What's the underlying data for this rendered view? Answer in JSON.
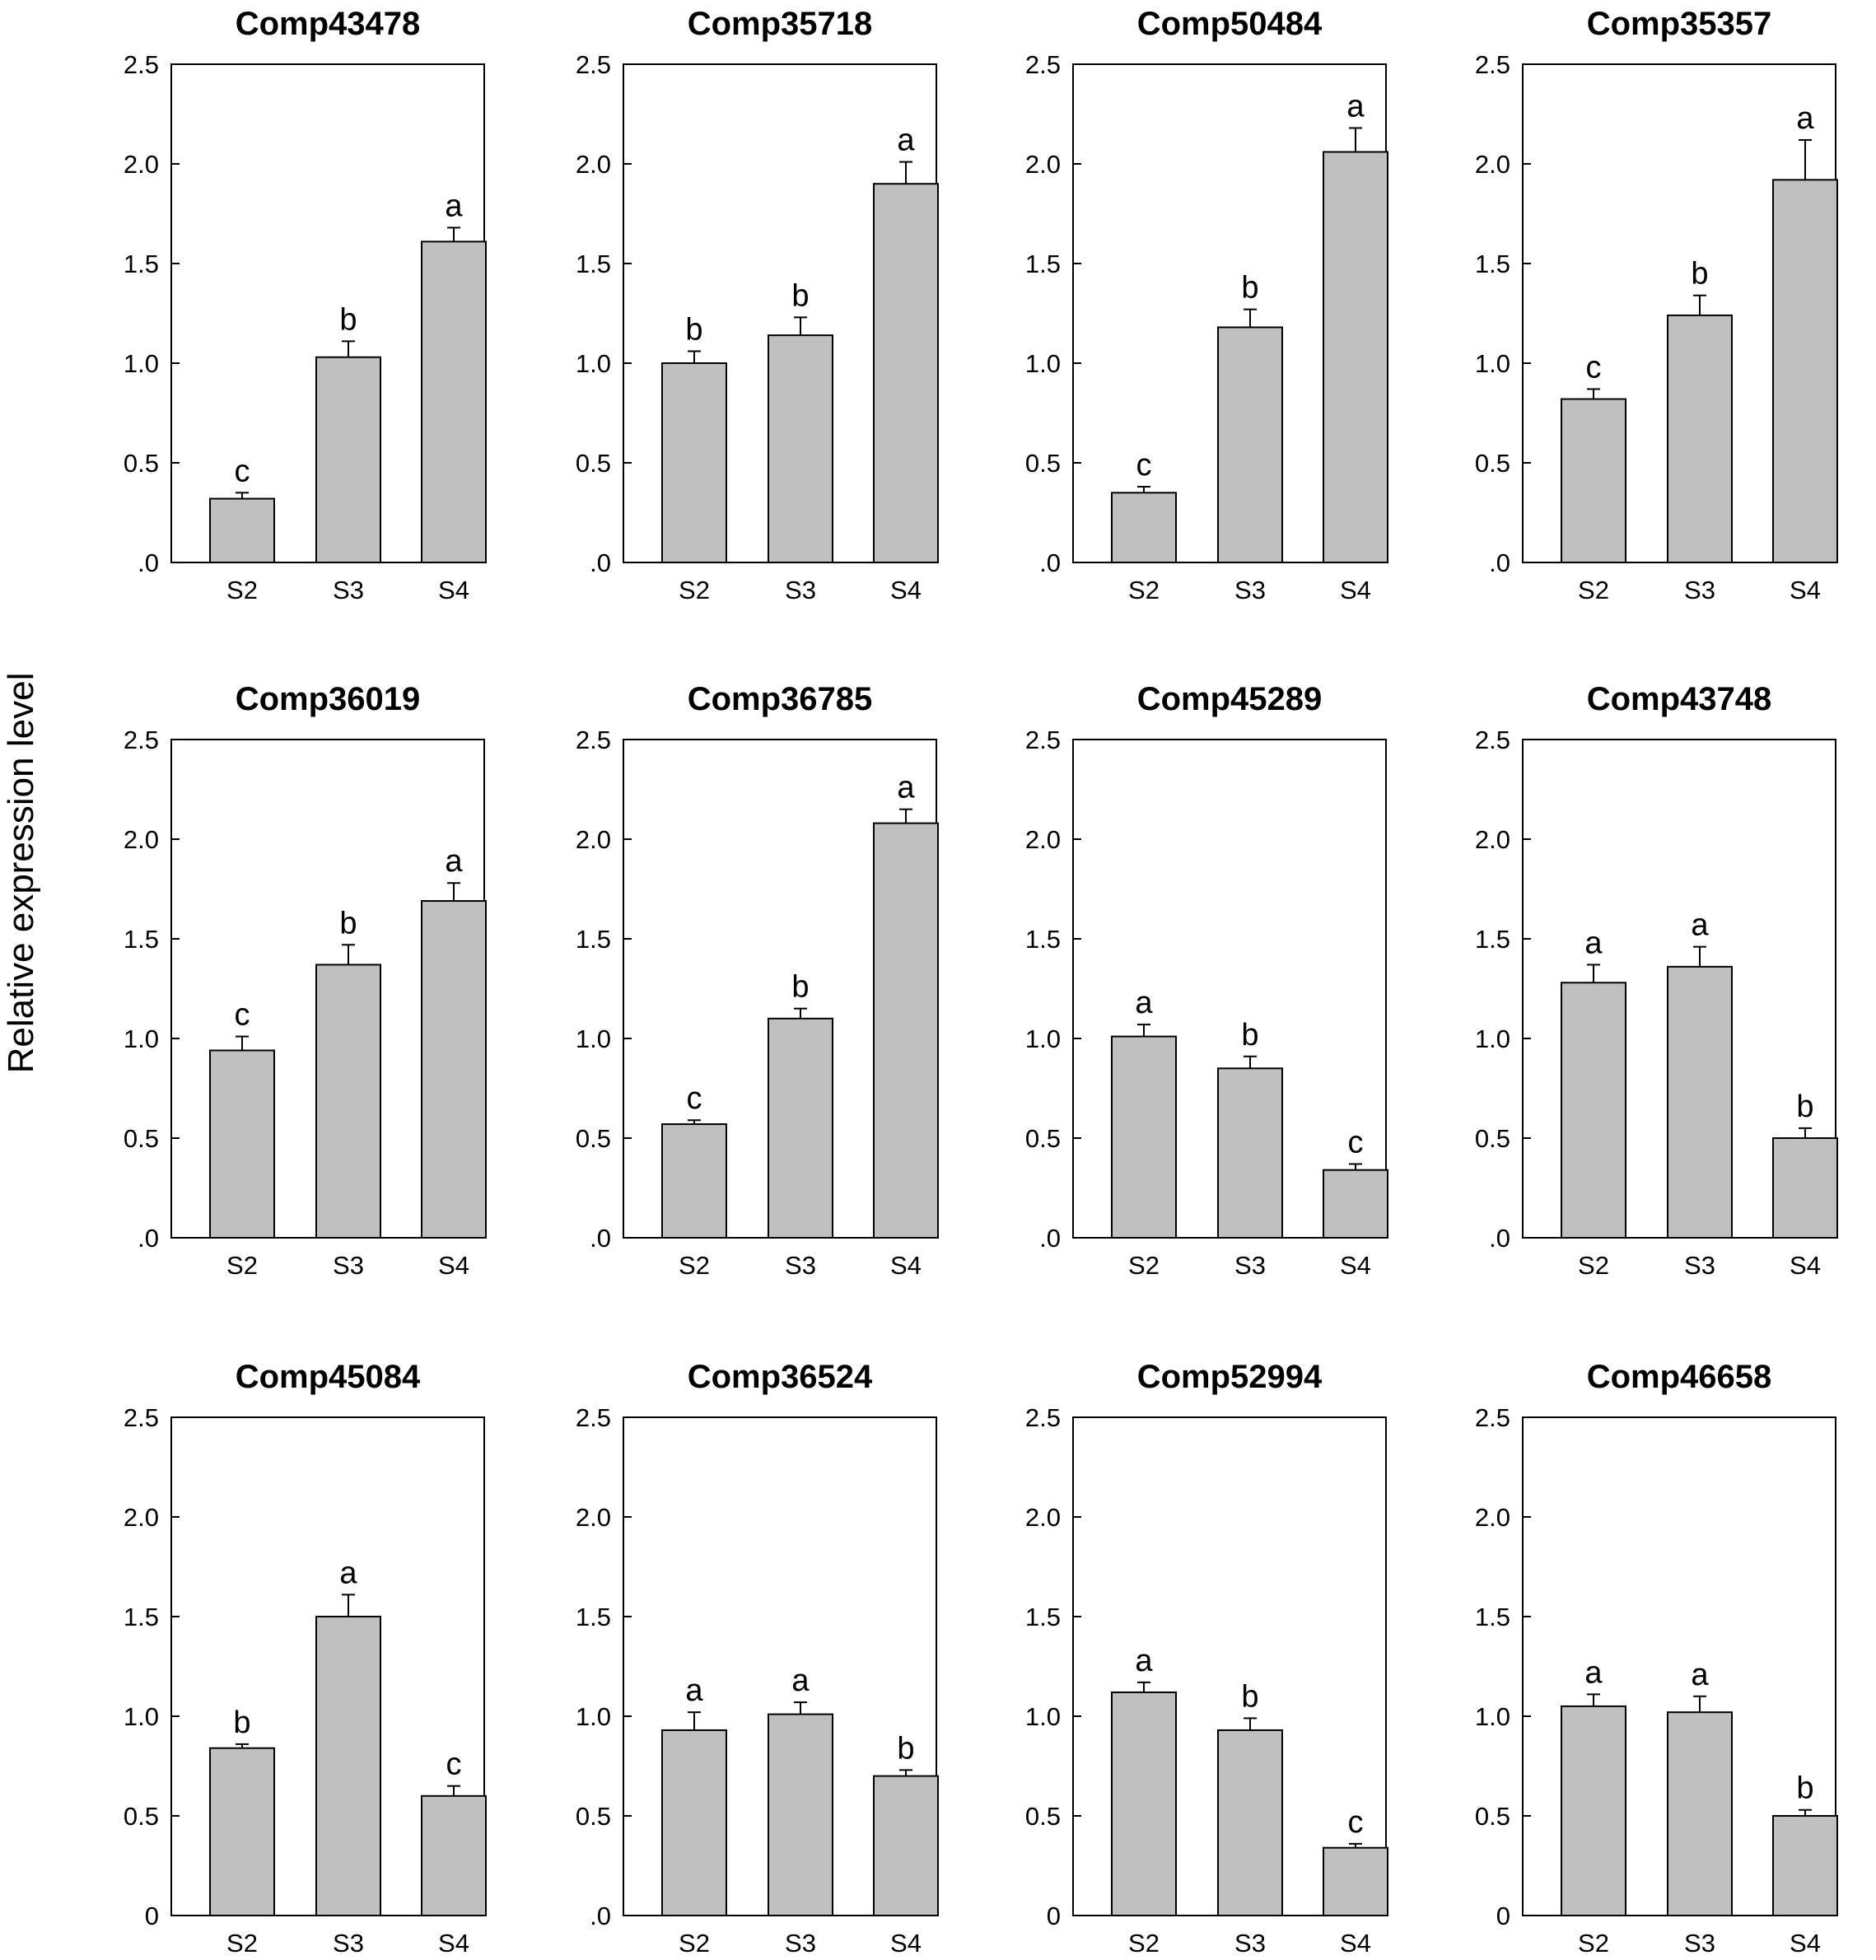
{
  "ylabel": "Relative expression level",
  "chart_data": [
    {
      "type": "bar",
      "title": "Comp43478",
      "categories": [
        "S2",
        "S3",
        "S4"
      ],
      "values": [
        0.32,
        1.03,
        1.61
      ],
      "errors": [
        0.03,
        0.08,
        0.07
      ],
      "labels": [
        "c",
        "b",
        "a"
      ],
      "ylim": [
        0,
        2.5
      ],
      "yticks": [
        ".0",
        "0.5",
        "1.0",
        "1.5",
        "2.0",
        "2.5"
      ]
    },
    {
      "type": "bar",
      "title": "Comp35718",
      "categories": [
        "S2",
        "S3",
        "S4"
      ],
      "values": [
        1.0,
        1.14,
        1.9
      ],
      "errors": [
        0.06,
        0.09,
        0.11
      ],
      "labels": [
        "b",
        "b",
        "a"
      ],
      "ylim": [
        0,
        2.5
      ],
      "yticks": [
        ".0",
        "0.5",
        "1.0",
        "1.5",
        "2.0",
        "2.5"
      ]
    },
    {
      "type": "bar",
      "title": "Comp50484",
      "categories": [
        "S2",
        "S3",
        "S4"
      ],
      "values": [
        0.35,
        1.18,
        2.06
      ],
      "errors": [
        0.03,
        0.09,
        0.12
      ],
      "labels": [
        "c",
        "b",
        "a"
      ],
      "ylim": [
        0,
        2.5
      ],
      "yticks": [
        ".0",
        "0.5",
        "1.0",
        "1.5",
        "2.0",
        "2.5"
      ]
    },
    {
      "type": "bar",
      "title": "Comp35357",
      "categories": [
        "S2",
        "S3",
        "S4"
      ],
      "values": [
        0.82,
        1.24,
        1.92
      ],
      "errors": [
        0.05,
        0.1,
        0.2
      ],
      "labels": [
        "c",
        "b",
        "a"
      ],
      "ylim": [
        0,
        2.5
      ],
      "yticks": [
        ".0",
        "0.5",
        "1.0",
        "1.5",
        "2.0",
        "2.5"
      ]
    },
    {
      "type": "bar",
      "title": "Comp36019",
      "categories": [
        "S2",
        "S3",
        "S4"
      ],
      "values": [
        0.94,
        1.37,
        1.69
      ],
      "errors": [
        0.07,
        0.1,
        0.09
      ],
      "labels": [
        "c",
        "b",
        "a"
      ],
      "ylim": [
        0,
        2.5
      ],
      "yticks": [
        ".0",
        "0.5",
        "1.0",
        "1.5",
        "2.0",
        "2.5"
      ]
    },
    {
      "type": "bar",
      "title": "Comp36785",
      "categories": [
        "S2",
        "S3",
        "S4"
      ],
      "values": [
        0.57,
        1.1,
        2.08
      ],
      "errors": [
        0.02,
        0.05,
        0.07
      ],
      "labels": [
        "c",
        "b",
        "a"
      ],
      "ylim": [
        0,
        2.5
      ],
      "yticks": [
        ".0",
        "0.5",
        "1.0",
        "1.5",
        "2.0",
        "2.5"
      ]
    },
    {
      "type": "bar",
      "title": "Comp45289",
      "categories": [
        "S2",
        "S3",
        "S4"
      ],
      "values": [
        1.01,
        0.85,
        0.34
      ],
      "errors": [
        0.06,
        0.06,
        0.03
      ],
      "labels": [
        "a",
        "b",
        "c"
      ],
      "ylim": [
        0,
        2.5
      ],
      "yticks": [
        ".0",
        "0.5",
        "1.0",
        "1.5",
        "2.0",
        "2.5"
      ]
    },
    {
      "type": "bar",
      "title": "Comp43748",
      "categories": [
        "S2",
        "S3",
        "S4"
      ],
      "values": [
        1.28,
        1.36,
        0.5
      ],
      "errors": [
        0.09,
        0.1,
        0.05
      ],
      "labels": [
        "a",
        "a",
        "b"
      ],
      "ylim": [
        0,
        2.5
      ],
      "yticks": [
        ".0",
        "0.5",
        "1.0",
        "1.5",
        "2.0",
        "2.5"
      ]
    },
    {
      "type": "bar",
      "title": "Comp45084",
      "categories": [
        "S2",
        "S3",
        "S4"
      ],
      "values": [
        0.84,
        1.5,
        0.6
      ],
      "errors": [
        0.02,
        0.11,
        0.05
      ],
      "labels": [
        "b",
        "a",
        "c"
      ],
      "ylim": [
        0,
        2.5
      ],
      "yticks": [
        "0",
        "0.5",
        "1.0",
        "1.5",
        "2.0",
        "2.5"
      ]
    },
    {
      "type": "bar",
      "title": "Comp36524",
      "categories": [
        "S2",
        "S3",
        "S4"
      ],
      "values": [
        0.93,
        1.01,
        0.7
      ],
      "errors": [
        0.09,
        0.06,
        0.03
      ],
      "labels": [
        "a",
        "a",
        "b"
      ],
      "ylim": [
        0,
        2.5
      ],
      "yticks": [
        ".0",
        "0.5",
        "1.0",
        "1.5",
        "2.0",
        "2.5"
      ]
    },
    {
      "type": "bar",
      "title": "Comp52994",
      "categories": [
        "S2",
        "S3",
        "S4"
      ],
      "values": [
        1.12,
        0.93,
        0.34
      ],
      "errors": [
        0.05,
        0.06,
        0.02
      ],
      "labels": [
        "a",
        "b",
        "c"
      ],
      "ylim": [
        0,
        2.5
      ],
      "yticks": [
        "0",
        "0.5",
        "1.0",
        "1.5",
        "2.0",
        "2.5"
      ]
    },
    {
      "type": "bar",
      "title": "Comp46658",
      "categories": [
        "S2",
        "S3",
        "S4"
      ],
      "values": [
        1.05,
        1.02,
        0.5
      ],
      "errors": [
        0.06,
        0.08,
        0.03
      ],
      "labels": [
        "a",
        "a",
        "b"
      ],
      "ylim": [
        0,
        2.5
      ],
      "yticks": [
        "0",
        "0.5",
        "1.0",
        "1.5",
        "2.0",
        "2.5"
      ]
    }
  ]
}
